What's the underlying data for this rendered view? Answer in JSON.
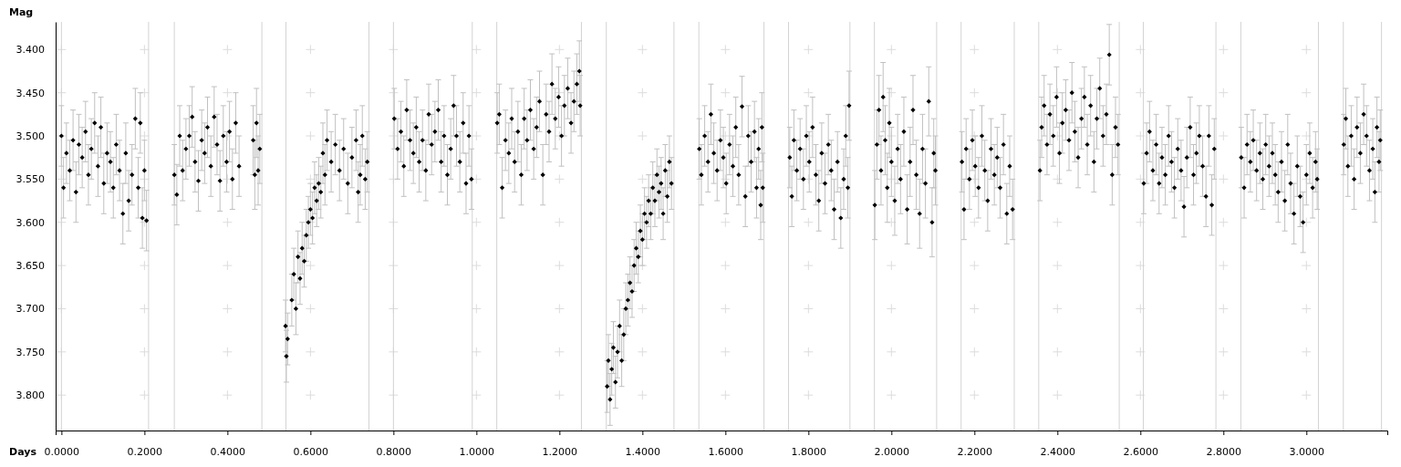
{
  "chart_data": {
    "type": "scatter",
    "xlabel": "Days",
    "ylabel": "Mag",
    "xlim": [
      -0.014,
      3.195
    ],
    "ylim": [
      3.841,
      3.368
    ],
    "xticks": [
      {
        "value": 0,
        "label": "0.0000"
      },
      {
        "value": 0.2,
        "label": "0.2000"
      },
      {
        "value": 0.4,
        "label": "0.4000"
      },
      {
        "value": 0.6,
        "label": "0.6000"
      },
      {
        "value": 0.8,
        "label": "0.8000"
      },
      {
        "value": 1,
        "label": "1.0000"
      },
      {
        "value": 1.2,
        "label": "1.2000"
      },
      {
        "value": 1.4,
        "label": "1.4000"
      },
      {
        "value": 1.6,
        "label": "1.6000"
      },
      {
        "value": 1.8,
        "label": "1.8000"
      },
      {
        "value": 2,
        "label": "2.0000"
      },
      {
        "value": 2.2,
        "label": "2.2000"
      },
      {
        "value": 2.4,
        "label": "2.4000"
      },
      {
        "value": 2.6,
        "label": "2.6000"
      },
      {
        "value": 2.8,
        "label": "2.8000"
      },
      {
        "value": 3,
        "label": "3.0000"
      }
    ],
    "yticks": [
      {
        "value": 3.4,
        "label": "3.400"
      },
      {
        "value": 3.45,
        "label": "3.450"
      },
      {
        "value": 3.5,
        "label": "3.500"
      },
      {
        "value": 3.55,
        "label": "3.550"
      },
      {
        "value": 3.6,
        "label": "3.600"
      },
      {
        "value": 3.65,
        "label": "3.650"
      },
      {
        "value": 3.7,
        "label": "3.700"
      },
      {
        "value": 3.75,
        "label": "3.750"
      },
      {
        "value": 3.8,
        "label": "3.800"
      }
    ],
    "grid": true,
    "marker": "diamond",
    "ref_lines": [
      {
        "axis": "x",
        "value": 0.0,
        "color": "#d3d3d3"
      },
      {
        "axis": "x",
        "value": 0.21,
        "color": "#d3d3d3"
      },
      {
        "axis": "x",
        "value": 0.272,
        "color": "#d3d3d3"
      },
      {
        "axis": "x",
        "value": 0.483,
        "color": "#d3d3d3"
      },
      {
        "axis": "x",
        "value": 0.541,
        "color": "#d3d3d3"
      },
      {
        "axis": "x",
        "value": 0.741,
        "color": "#d3d3d3"
      },
      {
        "axis": "x",
        "value": 0.8,
        "color": "#d3d3d3"
      },
      {
        "axis": "x",
        "value": 0.99,
        "color": "#d3d3d3"
      },
      {
        "axis": "x",
        "value": 1.049,
        "color": "#d3d3d3"
      },
      {
        "axis": "x",
        "value": 1.253,
        "color": "#d3d3d3"
      },
      {
        "axis": "x",
        "value": 1.313,
        "color": "#d3d3d3"
      },
      {
        "axis": "x",
        "value": 1.476,
        "color": "#d3d3d3"
      },
      {
        "axis": "x",
        "value": 1.536,
        "color": "#d3d3d3"
      },
      {
        "axis": "x",
        "value": 1.693,
        "color": "#d3d3d3"
      },
      {
        "axis": "x",
        "value": 1.752,
        "color": "#d3d3d3"
      },
      {
        "axis": "x",
        "value": 1.9,
        "color": "#d3d3d3"
      },
      {
        "axis": "x",
        "value": 1.959,
        "color": "#d3d3d3"
      },
      {
        "axis": "x",
        "value": 2.109,
        "color": "#d3d3d3"
      },
      {
        "axis": "x",
        "value": 2.168,
        "color": "#d3d3d3"
      },
      {
        "axis": "x",
        "value": 2.296,
        "color": "#d3d3d3"
      },
      {
        "axis": "x",
        "value": 2.355,
        "color": "#d3d3d3"
      },
      {
        "axis": "x",
        "value": 2.549,
        "color": "#d3d3d3"
      },
      {
        "axis": "x",
        "value": 2.607,
        "color": "#d3d3d3"
      },
      {
        "axis": "x",
        "value": 2.782,
        "color": "#d3d3d3"
      },
      {
        "axis": "x",
        "value": 2.842,
        "color": "#d3d3d3"
      },
      {
        "axis": "x",
        "value": 3.029,
        "color": "#d3d3d3"
      },
      {
        "axis": "x",
        "value": 3.089,
        "color": "#d3d3d3"
      },
      {
        "axis": "x",
        "value": 3.181,
        "color": "#d3d3d3"
      }
    ],
    "series": [
      {
        "color": "#000000",
        "x": [
          0.0,
          0.005,
          0.012,
          0.02,
          0.028,
          0.035,
          0.042,
          0.05,
          0.058,
          0.065,
          0.072,
          0.08,
          0.088,
          0.095,
          0.102,
          0.11,
          0.118,
          0.125,
          0.132,
          0.14,
          0.148,
          0.155,
          0.162,
          0.17,
          0.178,
          0.185,
          0.19,
          0.195,
          0.2,
          0.205
        ],
        "values": [
          3.5,
          3.56,
          3.52,
          3.54,
          3.505,
          3.565,
          3.51,
          3.525,
          3.495,
          3.545,
          3.515,
          3.485,
          3.535,
          3.49,
          3.555,
          3.52,
          3.53,
          3.56,
          3.51,
          3.54,
          3.59,
          3.52,
          3.575,
          3.545,
          3.48,
          3.56,
          3.485,
          3.595,
          3.54,
          3.598
        ],
        "errors": [
          0.035,
          0.035,
          0.035,
          0.035,
          0.035,
          0.035,
          0.035,
          0.035,
          0.035,
          0.035,
          0.035,
          0.035,
          0.035,
          0.035,
          0.035,
          0.035,
          0.035,
          0.035,
          0.035,
          0.035,
          0.035,
          0.035,
          0.035,
          0.035,
          0.035,
          0.035,
          0.035,
          0.035,
          0.035,
          0.035
        ]
      },
      {
        "color": "#000000",
        "x": [
          0.272,
          0.278,
          0.285,
          0.292,
          0.3,
          0.308,
          0.315,
          0.322,
          0.33,
          0.338,
          0.345,
          0.352,
          0.36,
          0.368,
          0.375,
          0.382,
          0.39,
          0.398,
          0.405,
          0.412,
          0.42,
          0.428,
          0.462,
          0.466,
          0.47,
          0.474,
          0.478
        ],
        "values": [
          3.545,
          3.568,
          3.5,
          3.54,
          3.515,
          3.5,
          3.478,
          3.53,
          3.552,
          3.505,
          3.52,
          3.49,
          3.535,
          3.478,
          3.51,
          3.552,
          3.5,
          3.53,
          3.495,
          3.55,
          3.485,
          3.535,
          3.505,
          3.545,
          3.485,
          3.54,
          3.515
        ],
        "errors": [
          0.035,
          0.035,
          0.035,
          0.035,
          0.035,
          0.035,
          0.035,
          0.035,
          0.035,
          0.035,
          0.035,
          0.035,
          0.035,
          0.035,
          0.035,
          0.035,
          0.035,
          0.035,
          0.035,
          0.035,
          0.035,
          0.035,
          0.04,
          0.04,
          0.04,
          0.04,
          0.04
        ]
      },
      {
        "color": "#000000",
        "x": [
          0.54,
          0.542,
          0.545,
          0.555,
          0.56,
          0.565,
          0.57,
          0.575,
          0.58,
          0.585,
          0.59,
          0.595,
          0.6,
          0.605,
          0.61,
          0.615,
          0.62,
          0.625,
          0.63,
          0.635,
          0.64,
          0.65,
          0.66,
          0.67,
          0.68,
          0.69,
          0.7,
          0.71,
          0.715,
          0.72,
          0.725,
          0.732,
          0.737
        ],
        "values": [
          3.72,
          3.755,
          3.735,
          3.69,
          3.66,
          3.7,
          3.64,
          3.665,
          3.63,
          3.645,
          3.615,
          3.6,
          3.585,
          3.595,
          3.56,
          3.575,
          3.555,
          3.565,
          3.52,
          3.545,
          3.505,
          3.53,
          3.51,
          3.54,
          3.515,
          3.555,
          3.525,
          3.505,
          3.565,
          3.545,
          3.5,
          3.55,
          3.53
        ],
        "errors": [
          0.03,
          0.03,
          0.03,
          0.03,
          0.03,
          0.03,
          0.03,
          0.03,
          0.03,
          0.03,
          0.03,
          0.03,
          0.03,
          0.03,
          0.03,
          0.03,
          0.03,
          0.03,
          0.035,
          0.035,
          0.035,
          0.035,
          0.035,
          0.035,
          0.035,
          0.035,
          0.035,
          0.035,
          0.035,
          0.035,
          0.035,
          0.035,
          0.035
        ]
      },
      {
        "color": "#000000",
        "x": [
          0.802,
          0.81,
          0.818,
          0.825,
          0.832,
          0.84,
          0.848,
          0.855,
          0.862,
          0.87,
          0.878,
          0.885,
          0.892,
          0.9,
          0.908,
          0.915,
          0.922,
          0.93,
          0.938,
          0.945,
          0.952,
          0.96,
          0.968,
          0.975,
          0.982,
          0.988
        ],
        "values": [
          3.48,
          3.515,
          3.495,
          3.535,
          3.47,
          3.505,
          3.52,
          3.49,
          3.53,
          3.505,
          3.54,
          3.475,
          3.51,
          3.495,
          3.47,
          3.53,
          3.5,
          3.545,
          3.515,
          3.465,
          3.5,
          3.53,
          3.485,
          3.555,
          3.5,
          3.55
        ],
        "errors": [
          0.035,
          0.035,
          0.035,
          0.035,
          0.035,
          0.035,
          0.035,
          0.035,
          0.035,
          0.035,
          0.035,
          0.035,
          0.035,
          0.035,
          0.035,
          0.035,
          0.035,
          0.035,
          0.035,
          0.035,
          0.035,
          0.035,
          0.035,
          0.035,
          0.035,
          0.035
        ]
      },
      {
        "color": "#000000",
        "x": [
          1.05,
          1.055,
          1.062,
          1.07,
          1.078,
          1.085,
          1.092,
          1.1,
          1.108,
          1.115,
          1.122,
          1.13,
          1.138,
          1.145,
          1.152,
          1.16,
          1.168,
          1.175,
          1.182,
          1.19,
          1.198,
          1.205,
          1.212,
          1.22,
          1.228,
          1.235,
          1.242,
          1.248,
          1.25
        ],
        "values": [
          3.485,
          3.475,
          3.56,
          3.505,
          3.52,
          3.48,
          3.53,
          3.495,
          3.545,
          3.48,
          3.505,
          3.47,
          3.515,
          3.49,
          3.46,
          3.545,
          3.475,
          3.495,
          3.44,
          3.48,
          3.455,
          3.5,
          3.465,
          3.445,
          3.485,
          3.46,
          3.44,
          3.425,
          3.465
        ],
        "errors": [
          0.035,
          0.035,
          0.035,
          0.035,
          0.035,
          0.035,
          0.035,
          0.035,
          0.035,
          0.035,
          0.035,
          0.035,
          0.035,
          0.035,
          0.035,
          0.035,
          0.035,
          0.035,
          0.035,
          0.035,
          0.035,
          0.035,
          0.035,
          0.035,
          0.035,
          0.035,
          0.035,
          0.035,
          0.035
        ]
      },
      {
        "color": "#000000",
        "x": [
          1.315,
          1.318,
          1.322,
          1.326,
          1.33,
          1.335,
          1.34,
          1.345,
          1.35,
          1.355,
          1.36,
          1.365,
          1.37,
          1.375,
          1.38,
          1.385,
          1.39,
          1.395,
          1.4,
          1.405,
          1.41,
          1.415,
          1.42,
          1.425,
          1.43,
          1.435,
          1.44,
          1.445,
          1.45,
          1.455,
          1.46,
          1.465,
          1.47
        ],
        "values": [
          3.79,
          3.76,
          3.805,
          3.77,
          3.745,
          3.785,
          3.75,
          3.72,
          3.76,
          3.73,
          3.7,
          3.69,
          3.67,
          3.68,
          3.65,
          3.63,
          3.64,
          3.61,
          3.62,
          3.59,
          3.6,
          3.575,
          3.59,
          3.56,
          3.575,
          3.545,
          3.565,
          3.555,
          3.59,
          3.54,
          3.57,
          3.53,
          3.555
        ],
        "errors": [
          0.03,
          0.03,
          0.03,
          0.03,
          0.03,
          0.03,
          0.03,
          0.03,
          0.03,
          0.03,
          0.03,
          0.03,
          0.03,
          0.03,
          0.03,
          0.03,
          0.03,
          0.03,
          0.03,
          0.03,
          0.03,
          0.03,
          0.03,
          0.03,
          0.03,
          0.03,
          0.03,
          0.03,
          0.03,
          0.03,
          0.03,
          0.03,
          0.03
        ]
      },
      {
        "color": "#000000",
        "x": [
          1.537,
          1.542,
          1.55,
          1.558,
          1.565,
          1.572,
          1.58,
          1.588,
          1.595,
          1.602,
          1.61,
          1.618,
          1.625,
          1.632,
          1.64,
          1.648,
          1.655,
          1.662,
          1.67,
          1.675,
          1.68,
          1.685,
          1.688,
          1.69
        ],
        "values": [
          3.515,
          3.545,
          3.5,
          3.53,
          3.475,
          3.52,
          3.54,
          3.505,
          3.525,
          3.555,
          3.51,
          3.535,
          3.49,
          3.545,
          3.466,
          3.57,
          3.5,
          3.53,
          3.495,
          3.56,
          3.515,
          3.58,
          3.49,
          3.56
        ],
        "errors": [
          0.035,
          0.035,
          0.035,
          0.035,
          0.035,
          0.035,
          0.035,
          0.035,
          0.035,
          0.035,
          0.035,
          0.035,
          0.035,
          0.035,
          0.035,
          0.035,
          0.035,
          0.035,
          0.035,
          0.035,
          0.035,
          0.04,
          0.04,
          0.04
        ]
      },
      {
        "color": "#000000",
        "x": [
          1.755,
          1.76,
          1.765,
          1.772,
          1.78,
          1.788,
          1.795,
          1.802,
          1.81,
          1.818,
          1.825,
          1.832,
          1.84,
          1.848,
          1.855,
          1.862,
          1.87,
          1.878,
          1.885,
          1.89,
          1.895,
          1.898
        ],
        "values": [
          3.525,
          3.57,
          3.505,
          3.54,
          3.515,
          3.55,
          3.5,
          3.53,
          3.49,
          3.545,
          3.575,
          3.52,
          3.555,
          3.51,
          3.54,
          3.585,
          3.53,
          3.595,
          3.55,
          3.5,
          3.56,
          3.465
        ],
        "errors": [
          0.035,
          0.035,
          0.035,
          0.035,
          0.035,
          0.035,
          0.035,
          0.035,
          0.035,
          0.035,
          0.035,
          0.035,
          0.035,
          0.035,
          0.035,
          0.035,
          0.035,
          0.035,
          0.035,
          0.035,
          0.035,
          0.04
        ]
      },
      {
        "color": "#000000",
        "x": [
          1.96,
          1.965,
          1.97,
          1.975,
          1.98,
          1.985,
          1.99,
          1.995,
          2.0,
          2.008,
          2.015,
          2.022,
          2.03,
          2.038,
          2.045,
          2.052,
          2.06,
          2.068,
          2.075,
          2.082,
          2.09,
          2.098,
          2.102,
          2.106
        ],
        "values": [
          3.58,
          3.51,
          3.47,
          3.54,
          3.455,
          3.505,
          3.56,
          3.485,
          3.53,
          3.575,
          3.515,
          3.55,
          3.495,
          3.585,
          3.53,
          3.47,
          3.545,
          3.59,
          3.515,
          3.555,
          3.46,
          3.6,
          3.52,
          3.54
        ],
        "errors": [
          0.04,
          0.04,
          0.04,
          0.04,
          0.04,
          0.04,
          0.04,
          0.04,
          0.04,
          0.04,
          0.04,
          0.04,
          0.04,
          0.04,
          0.04,
          0.04,
          0.04,
          0.04,
          0.04,
          0.04,
          0.04,
          0.04,
          0.04,
          0.04
        ]
      },
      {
        "color": "#000000",
        "x": [
          2.17,
          2.175,
          2.18,
          2.188,
          2.195,
          2.202,
          2.21,
          2.218,
          2.225,
          2.232,
          2.24,
          2.248,
          2.255,
          2.262,
          2.27,
          2.278,
          2.285,
          2.292
        ],
        "values": [
          3.53,
          3.585,
          3.515,
          3.55,
          3.505,
          3.535,
          3.56,
          3.5,
          3.54,
          3.575,
          3.515,
          3.545,
          3.525,
          3.56,
          3.51,
          3.59,
          3.535,
          3.585
        ],
        "errors": [
          0.035,
          0.035,
          0.035,
          0.035,
          0.035,
          0.035,
          0.035,
          0.035,
          0.035,
          0.035,
          0.035,
          0.035,
          0.035,
          0.035,
          0.035,
          0.035,
          0.035,
          0.035
        ]
      },
      {
        "color": "#000000",
        "x": [
          2.358,
          2.362,
          2.368,
          2.375,
          2.382,
          2.39,
          2.398,
          2.405,
          2.412,
          2.42,
          2.428,
          2.435,
          2.442,
          2.45,
          2.458,
          2.465,
          2.472,
          2.48,
          2.488,
          2.495,
          2.502,
          2.51,
          2.518,
          2.525,
          2.532,
          2.54,
          2.546
        ],
        "values": [
          3.54,
          3.49,
          3.465,
          3.51,
          3.475,
          3.5,
          3.455,
          3.52,
          3.485,
          3.47,
          3.505,
          3.45,
          3.495,
          3.525,
          3.48,
          3.455,
          3.51,
          3.465,
          3.53,
          3.48,
          3.445,
          3.5,
          3.475,
          3.406,
          3.545,
          3.49,
          3.51
        ],
        "errors": [
          0.035,
          0.035,
          0.035,
          0.035,
          0.035,
          0.035,
          0.035,
          0.035,
          0.035,
          0.035,
          0.035,
          0.035,
          0.035,
          0.035,
          0.035,
          0.035,
          0.035,
          0.035,
          0.035,
          0.035,
          0.035,
          0.035,
          0.035,
          0.035,
          0.035,
          0.035,
          0.035
        ]
      },
      {
        "color": "#000000",
        "x": [
          2.608,
          2.615,
          2.622,
          2.63,
          2.638,
          2.645,
          2.652,
          2.66,
          2.668,
          2.675,
          2.682,
          2.69,
          2.698,
          2.705,
          2.712,
          2.72,
          2.728,
          2.735,
          2.742,
          2.75,
          2.758,
          2.765,
          2.772,
          2.778
        ],
        "values": [
          3.555,
          3.52,
          3.495,
          3.54,
          3.51,
          3.555,
          3.525,
          3.545,
          3.5,
          3.53,
          3.56,
          3.515,
          3.54,
          3.582,
          3.525,
          3.49,
          3.545,
          3.52,
          3.5,
          3.535,
          3.57,
          3.5,
          3.58,
          3.515
        ],
        "errors": [
          0.035,
          0.035,
          0.035,
          0.035,
          0.035,
          0.035,
          0.035,
          0.035,
          0.035,
          0.035,
          0.035,
          0.035,
          0.035,
          0.035,
          0.035,
          0.035,
          0.035,
          0.035,
          0.035,
          0.035,
          0.035,
          0.035,
          0.035,
          0.035
        ]
      },
      {
        "color": "#000000",
        "x": [
          2.843,
          2.85,
          2.857,
          2.865,
          2.872,
          2.88,
          2.888,
          2.895,
          2.902,
          2.91,
          2.918,
          2.925,
          2.932,
          2.94,
          2.948,
          2.955,
          2.962,
          2.97,
          2.978,
          2.985,
          2.992,
          3.0,
          3.008,
          3.015,
          3.022,
          3.026
        ],
        "values": [
          3.525,
          3.56,
          3.51,
          3.53,
          3.505,
          3.54,
          3.52,
          3.55,
          3.51,
          3.535,
          3.52,
          3.545,
          3.565,
          3.53,
          3.575,
          3.51,
          3.555,
          3.59,
          3.535,
          3.57,
          3.6,
          3.545,
          3.52,
          3.56,
          3.53,
          3.55
        ],
        "errors": [
          0.035,
          0.035,
          0.035,
          0.035,
          0.035,
          0.035,
          0.035,
          0.035,
          0.035,
          0.035,
          0.035,
          0.035,
          0.035,
          0.035,
          0.035,
          0.035,
          0.035,
          0.035,
          0.035,
          0.035,
          0.035,
          0.035,
          0.035,
          0.035,
          0.035,
          0.035
        ]
      },
      {
        "color": "#000000",
        "x": [
          3.09,
          3.095,
          3.1,
          3.108,
          3.115,
          3.122,
          3.13,
          3.138,
          3.145,
          3.152,
          3.16,
          3.165,
          3.17,
          3.175,
          3.178
        ],
        "values": [
          3.51,
          3.48,
          3.535,
          3.5,
          3.55,
          3.49,
          3.52,
          3.475,
          3.5,
          3.54,
          3.515,
          3.565,
          3.49,
          3.53,
          3.505
        ],
        "errors": [
          0.035,
          0.035,
          0.035,
          0.035,
          0.035,
          0.035,
          0.035,
          0.035,
          0.035,
          0.035,
          0.035,
          0.035,
          0.035,
          0.035,
          0.035
        ]
      }
    ]
  }
}
